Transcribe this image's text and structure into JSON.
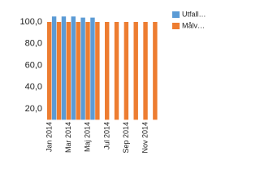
{
  "chart_data": {
    "type": "bar",
    "categories": [
      "Jan 2014",
      null,
      "Mar 2014",
      null,
      "Maj 2014",
      null,
      "Jul 2014",
      null,
      "Sep 2014",
      null,
      "Nov 2014",
      null
    ],
    "series": [
      {
        "name": "Utfall…",
        "color": "#5b9bd5",
        "values": [
          105,
          105,
          105,
          104,
          104,
          null,
          null,
          null,
          null,
          null,
          null,
          null
        ]
      },
      {
        "name": "Målv…",
        "color": "#ed7d31",
        "values": [
          100,
          100,
          100,
          100,
          100,
          100,
          100,
          100,
          100,
          100,
          100,
          100
        ]
      }
    ],
    "ylim": [
      10,
      110
    ],
    "yticks": [
      {
        "value": 20,
        "label": "20,0"
      },
      {
        "value": 40,
        "label": "40,0"
      },
      {
        "value": 60,
        "label": "60,0"
      },
      {
        "value": 80,
        "label": "80,0"
      },
      {
        "value": 100,
        "label": "100,0"
      }
    ],
    "grid": false,
    "legend": "right"
  }
}
